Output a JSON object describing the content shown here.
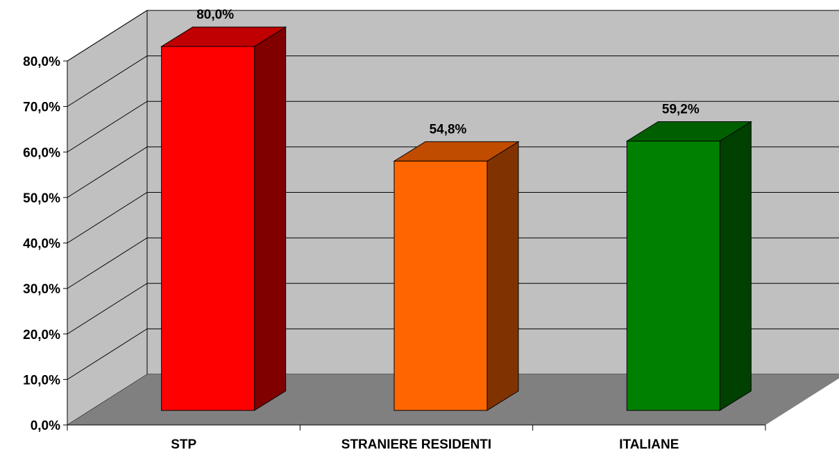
{
  "chart_data": {
    "type": "bar",
    "categories": [
      "STP",
      "STRANIERE RESIDENTI",
      "ITALIANE"
    ],
    "values": [
      80.0,
      54.8,
      59.2
    ],
    "data_labels": [
      "80,0%",
      "54,8%",
      "59,2%"
    ],
    "title": "",
    "xlabel": "",
    "ylabel": "",
    "ylim": [
      0,
      80
    ],
    "yticks": [
      0,
      10,
      20,
      30,
      40,
      50,
      60,
      70,
      80
    ],
    "ytick_labels": [
      "0,0%",
      "10,0%",
      "20,0%",
      "30,0%",
      "40,0%",
      "50,0%",
      "60,0%",
      "70,0%",
      "80,0%"
    ],
    "grid": true,
    "legend": "none",
    "style": "3d-column",
    "colors": {
      "walls": "#c0c0c0",
      "floor": "#808080",
      "bars": [
        {
          "front": "#ff0000",
          "top": "#c00000",
          "side": "#800000"
        },
        {
          "front": "#ff6600",
          "top": "#c04c00",
          "side": "#803300"
        },
        {
          "front": "#008000",
          "top": "#006000",
          "side": "#004000"
        }
      ]
    }
  }
}
